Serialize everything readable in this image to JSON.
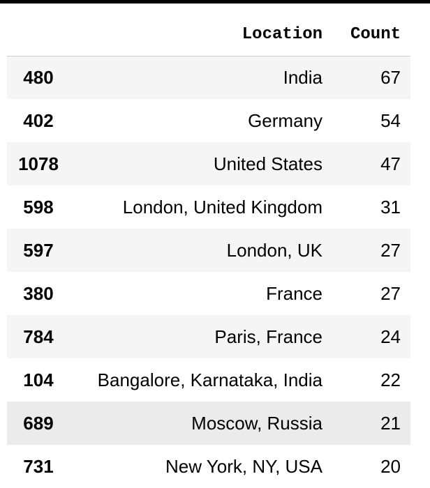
{
  "table": {
    "headers": {
      "index": "",
      "location": "Location",
      "count": "Count"
    },
    "rows": [
      {
        "index": "480",
        "location": "India",
        "count": "67"
      },
      {
        "index": "402",
        "location": "Germany",
        "count": "54"
      },
      {
        "index": "1078",
        "location": "United States",
        "count": "47"
      },
      {
        "index": "598",
        "location": "London, United Kingdom",
        "count": "31"
      },
      {
        "index": "597",
        "location": "London, UK",
        "count": "27"
      },
      {
        "index": "380",
        "location": "France",
        "count": "27"
      },
      {
        "index": "784",
        "location": "Paris, France",
        "count": "24"
      },
      {
        "index": "104",
        "location": "Bangalore, Karnataka, India",
        "count": "22"
      },
      {
        "index": "689",
        "location": "Moscow, Russia",
        "count": "21"
      },
      {
        "index": "731",
        "location": "New York, NY, USA",
        "count": "20"
      }
    ]
  }
}
